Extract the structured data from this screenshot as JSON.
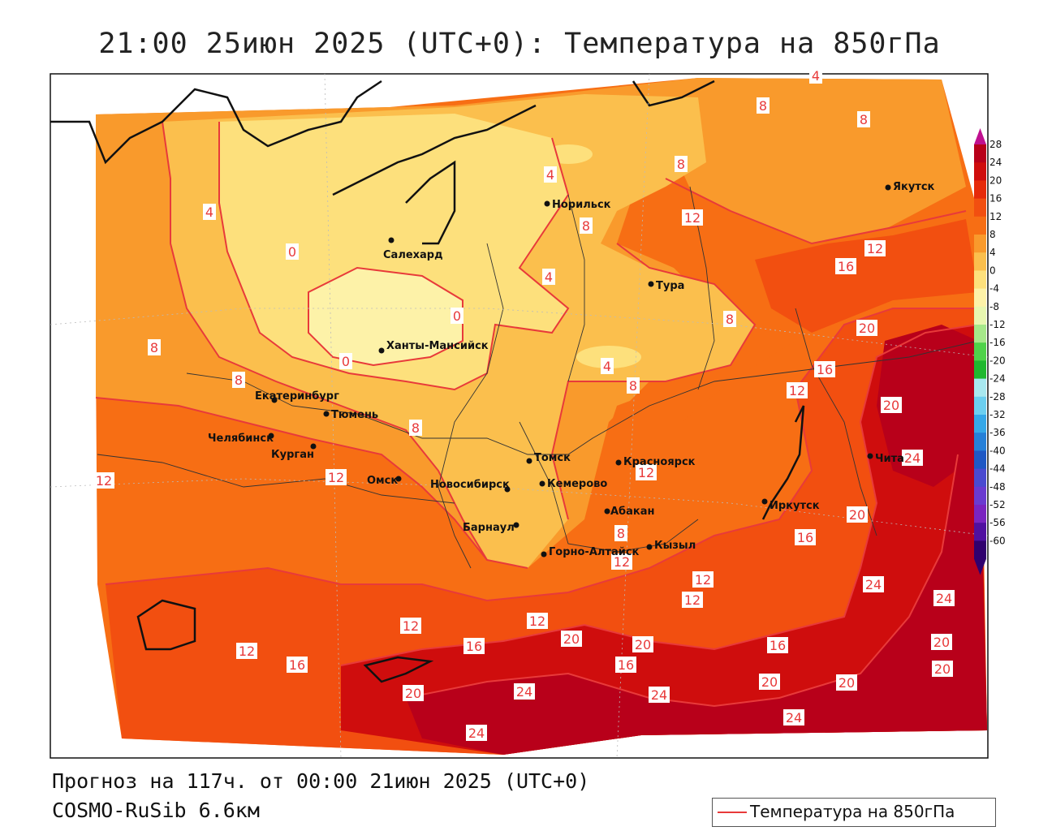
{
  "title": "21:00 25июн 2025 (UTC+0): Температура на 850гПа",
  "footer": {
    "forecast": "Прогноз на 117ч. от 00:00 21июн 2025 (UTC+0)",
    "model": "COSMO-RuSib 6.6км"
  },
  "legend": {
    "label": "Температура на 850гПа",
    "line_color": "#e83a3a"
  },
  "cities": [
    {
      "name": "Норильск"
    },
    {
      "name": "Якутск"
    },
    {
      "name": "Салехард"
    },
    {
      "name": "Тура"
    },
    {
      "name": "Ханты-Мансийск"
    },
    {
      "name": "Екатеринбург"
    },
    {
      "name": "Тюмень"
    },
    {
      "name": "Челябинск"
    },
    {
      "name": "Курган"
    },
    {
      "name": "Омск"
    },
    {
      "name": "Томск"
    },
    {
      "name": "Новосибирск"
    },
    {
      "name": "Кемерово"
    },
    {
      "name": "Красноярск"
    },
    {
      "name": "Абакан"
    },
    {
      "name": "Барнаул"
    },
    {
      "name": "Иркутск"
    },
    {
      "name": "Горно-Алтайск"
    },
    {
      "name": "Кызыл"
    },
    {
      "name": "Чита"
    }
  ],
  "isotherm_labels": [
    "4",
    "8",
    "8",
    "4",
    "8",
    "4",
    "12",
    "8",
    "12",
    "16",
    "0",
    "0",
    "4",
    "8",
    "0",
    "8",
    "20",
    "4",
    "16",
    "8",
    "12",
    "8",
    "20",
    "8",
    "12",
    "12",
    "12",
    "24",
    "12",
    "20",
    "8",
    "12",
    "16",
    "12",
    "12",
    "16",
    "24",
    "24",
    "12",
    "20",
    "20",
    "16",
    "12",
    "16",
    "16",
    "24",
    "20",
    "20",
    "20",
    "20",
    "24",
    "24",
    "24",
    "20"
  ],
  "colorbar": {
    "labels": [
      "28",
      "24",
      "20",
      "16",
      "12",
      "8",
      "4",
      "0",
      "-4",
      "-8",
      "-12",
      "-16",
      "-20",
      "-24",
      "-28",
      "-32",
      "-36",
      "-40",
      "-44",
      "-48",
      "-52",
      "-56",
      "-60"
    ],
    "colors": [
      "#b8001a",
      "#cf0d0d",
      "#e62a0a",
      "#f24f10",
      "#f76e14",
      "#f99a2c",
      "#fbbf4d",
      "#fde07c",
      "#fdf2a8",
      "#e8f7b0",
      "#a6e88a",
      "#4fd24a",
      "#1fb82e",
      "#a8e8f0",
      "#6ccff0",
      "#36a8e8",
      "#2680d8",
      "#1f58c4",
      "#4a4ad0",
      "#6a3ad0",
      "#7a24c0",
      "#5010a0",
      "#30006e"
    ]
  },
  "colors": {
    "t_lt0": "#fdf2a8",
    "t_0_4": "#fde07c",
    "t_4_8": "#fbbf4d",
    "t_8_12": "#f99a2c",
    "t_12_16": "#f76e14",
    "t_16_20": "#f24f10",
    "t_20_24": "#cf0d0d",
    "t_gt24": "#b8001a",
    "isotherm": "#e83a3a"
  }
}
